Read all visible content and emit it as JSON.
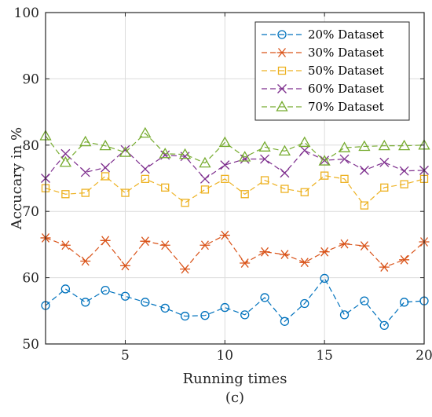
{
  "chart_data": {
    "type": "line",
    "xlabel": "Running times",
    "ylabel": "Accucary in %",
    "caption": "(c)",
    "xlim": [
      1,
      20
    ],
    "ylim": [
      50,
      100
    ],
    "xticks": [
      5,
      10,
      15,
      20
    ],
    "yticks": [
      50,
      60,
      70,
      80,
      90,
      100
    ],
    "grid": true,
    "legend_position": "top-right",
    "x": [
      1,
      2,
      3,
      4,
      5,
      6,
      7,
      8,
      9,
      10,
      11,
      12,
      13,
      14,
      15,
      16,
      17,
      18,
      19,
      20
    ],
    "series": [
      {
        "name": "20% Dataset",
        "color": "#0072BD",
        "marker": "circle",
        "values": [
          55.8,
          58.3,
          56.3,
          58.1,
          57.2,
          56.3,
          55.4,
          54.2,
          54.3,
          55.5,
          54.4,
          57.0,
          53.4,
          56.1,
          59.9,
          54.4,
          56.5,
          52.8,
          56.3,
          56.5
        ]
      },
      {
        "name": "30% Dataset",
        "color": "#D95319",
        "marker": "asterisk",
        "values": [
          66.0,
          64.9,
          62.5,
          65.6,
          61.8,
          65.5,
          64.9,
          61.3,
          64.9,
          66.4,
          62.2,
          63.9,
          63.5,
          62.3,
          63.9,
          65.1,
          64.8,
          61.6,
          62.7,
          65.4
        ]
      },
      {
        "name": "50% Dataset",
        "color": "#EDB120",
        "marker": "square",
        "values": [
          73.5,
          72.6,
          72.8,
          75.3,
          72.8,
          74.9,
          73.6,
          71.3,
          73.3,
          74.9,
          72.6,
          74.7,
          73.4,
          72.9,
          75.4,
          74.9,
          70.9,
          73.6,
          74.1,
          74.9
        ]
      },
      {
        "name": "60% Dataset",
        "color": "#7E2F8E",
        "marker": "x",
        "values": [
          75.0,
          78.7,
          75.9,
          76.6,
          79.3,
          76.4,
          78.5,
          78.3,
          74.9,
          77.0,
          77.9,
          77.9,
          75.8,
          79.2,
          77.7,
          77.9,
          76.2,
          77.4,
          76.1,
          76.2
        ]
      },
      {
        "name": "70% Dataset",
        "color": "#77AC30",
        "marker": "triangle",
        "values": [
          81.4,
          77.4,
          80.5,
          79.9,
          78.9,
          81.8,
          78.7,
          78.6,
          77.3,
          80.4,
          78.2,
          79.7,
          79.1,
          80.4,
          77.6,
          79.6,
          79.8,
          79.9,
          79.9,
          80.0
        ]
      }
    ]
  }
}
